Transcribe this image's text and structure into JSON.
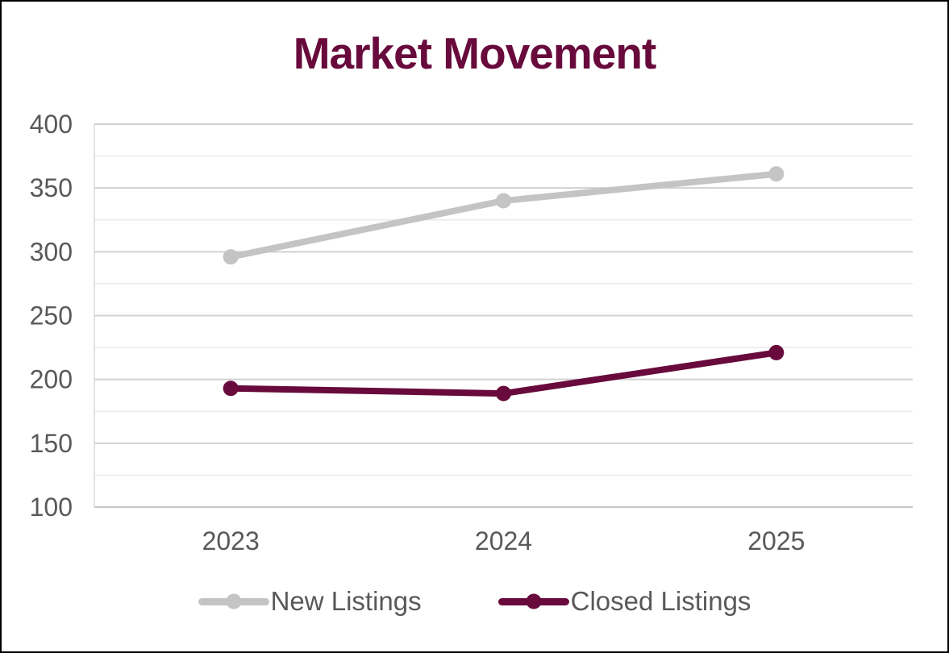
{
  "colors": {
    "title": "#680A3C",
    "axis_text": "#595959",
    "legend_text": "#595959",
    "gridline_major": "#D2D0D0",
    "gridline_minor": "#EBEAEA",
    "axis_line": "#C9C7C7",
    "plot_border": "#D9D9D9",
    "background": "#FFFFFF",
    "frame_border": "#000000"
  },
  "chart_data": {
    "type": "line",
    "title": "Market Movement",
    "categories": [
      "2023",
      "2024",
      "2025"
    ],
    "series": [
      {
        "name": "New Listings",
        "color": "#C4C4C4",
        "values": [
          296,
          340,
          361
        ]
      },
      {
        "name": "Closed Listings",
        "color": "#680A3C",
        "values": [
          193,
          189,
          221
        ]
      }
    ],
    "xlabel": "",
    "ylabel": "",
    "ylim": [
      100,
      400
    ],
    "yticks": [
      100,
      150,
      200,
      250,
      300,
      350,
      400
    ],
    "minor_grid_step": 25,
    "grid": "horizontal, major and minor lines",
    "legend_position": "bottom-center",
    "marker": "circle"
  }
}
